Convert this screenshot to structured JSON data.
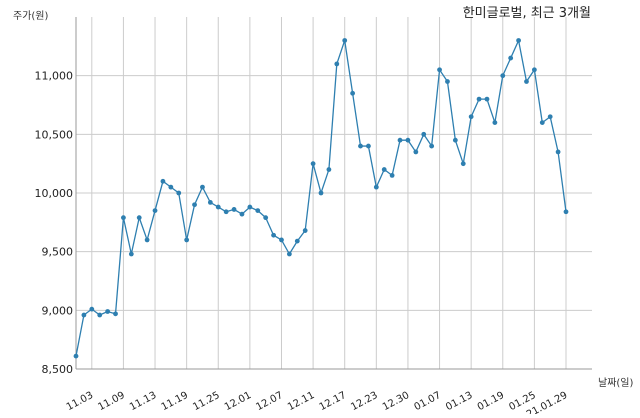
{
  "chart_data": {
    "type": "line",
    "title": "한미글로벌, 최근 3개월",
    "ylabel": "주가(원)",
    "xlabel": "날짜(일)",
    "ylim": [
      8500,
      11500
    ],
    "yticks": [
      8500,
      9000,
      9500,
      10000,
      10500,
      11000
    ],
    "ytick_labels": [
      "8,500",
      "9,000",
      "9,500",
      "10,000",
      "10,500",
      "11,000"
    ],
    "grid": true,
    "line_color": "#2e7fb0",
    "grid_color": "#cccccc",
    "x_tick_labels": [
      "11.03",
      "11.09",
      "11.13",
      "11.19",
      "11.25",
      "12.01",
      "12.07",
      "12.11",
      "12.17",
      "12.23",
      "12.30",
      "01.07",
      "01.13",
      "01.19",
      "01.25",
      "21.01.29"
    ],
    "x_tick_indices": [
      3,
      7,
      11,
      15,
      19,
      23,
      27,
      31,
      35,
      39,
      43,
      47,
      51,
      55,
      59,
      63
    ],
    "series": [
      {
        "values": [
          8610,
          8960,
          9010,
          8960,
          8990,
          8970,
          9790,
          9480,
          9790,
          9600,
          9850,
          10100,
          10050,
          10000,
          9600,
          9900,
          10050,
          9920,
          9880,
          9840,
          9860,
          9820,
          9880,
          9850,
          9790,
          9640,
          9600,
          9480,
          9590,
          9680,
          10250,
          10000,
          10200,
          11100,
          11300,
          10850,
          10400,
          10400,
          10050,
          10200,
          10150,
          10450,
          10450,
          10350,
          10500,
          10400,
          11050,
          10950,
          10450,
          10250,
          10650,
          10800,
          10800,
          10600,
          11000,
          11150,
          11300,
          10950,
          11050,
          10600,
          10650,
          10350,
          9840
        ]
      }
    ]
  }
}
